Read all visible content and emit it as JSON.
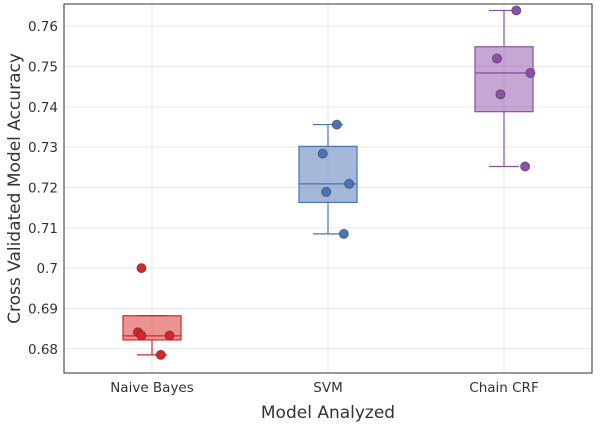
{
  "chart_data": {
    "type": "box",
    "title": "",
    "xlabel": "Model Analyzed",
    "ylabel": "Cross Validated Model Accuracy",
    "ylim": [
      0.674,
      0.7655
    ],
    "yticks": [
      0.68,
      0.69,
      0.7,
      0.71,
      0.72,
      0.73,
      0.74,
      0.75,
      0.76
    ],
    "ytick_labels": [
      "0.68",
      "0.69",
      "0.7",
      "0.71",
      "0.72",
      "0.73",
      "0.74",
      "0.75",
      "0.76"
    ],
    "grid": true,
    "legend": "none",
    "categories": [
      "Naive Bayes",
      "SVM",
      "Chain CRF"
    ],
    "series": [
      {
        "category": "Naive Bayes",
        "color": "#d62728",
        "box": {
          "whisker_low": 0.6785,
          "q1": 0.6822,
          "median": 0.6832,
          "q3": 0.6882,
          "whisker_high": 0.6882
        },
        "points": [
          {
            "x_offset": -0.06,
            "y": 0.7
          },
          {
            "x_offset": -0.08,
            "y": 0.6841
          },
          {
            "x_offset": -0.06,
            "y": 0.6833
          },
          {
            "x_offset": 0.1,
            "y": 0.6833
          },
          {
            "x_offset": 0.05,
            "y": 0.6785
          }
        ]
      },
      {
        "category": "SVM",
        "color": "#4a74b4",
        "box": {
          "whisker_low": 0.7085,
          "q1": 0.7163,
          "median": 0.7209,
          "q3": 0.7302,
          "whisker_high": 0.7356
        },
        "points": [
          {
            "x_offset": 0.05,
            "y": 0.7356
          },
          {
            "x_offset": -0.03,
            "y": 0.7284
          },
          {
            "x_offset": 0.12,
            "y": 0.7209
          },
          {
            "x_offset": -0.01,
            "y": 0.7189
          },
          {
            "x_offset": 0.09,
            "y": 0.7085
          }
        ]
      },
      {
        "category": "Chain CRF",
        "color": "#8d4fa8",
        "box": {
          "whisker_low": 0.7252,
          "q1": 0.7388,
          "median": 0.7484,
          "q3": 0.7549,
          "whisker_high": 0.7639
        },
        "points": [
          {
            "x_offset": 0.07,
            "y": 0.7639
          },
          {
            "x_offset": -0.04,
            "y": 0.752
          },
          {
            "x_offset": 0.15,
            "y": 0.7484
          },
          {
            "x_offset": -0.02,
            "y": 0.7431
          },
          {
            "x_offset": 0.12,
            "y": 0.7252
          }
        ]
      }
    ]
  }
}
